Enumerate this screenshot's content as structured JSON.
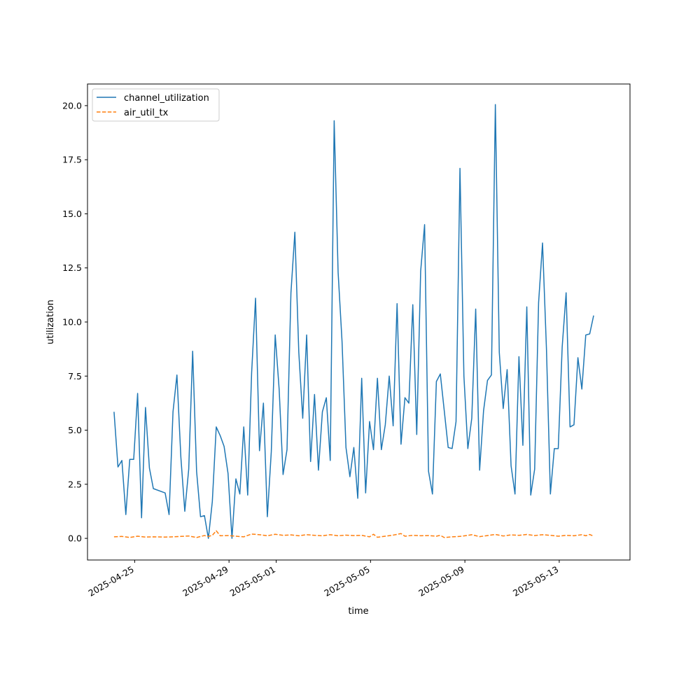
{
  "chart_data": {
    "type": "line",
    "title": "",
    "xlabel": "time",
    "ylabel": "utilization",
    "xlim": [
      "2025-04-23",
      "2025-05-16"
    ],
    "ylim": [
      -1.0,
      21.0
    ],
    "x_ticks": [
      "2025-04-25",
      "2025-04-29",
      "2025-05-01",
      "2025-05-05",
      "2025-05-09",
      "2025-05-13"
    ],
    "y_ticks": [
      "0.0",
      "2.5",
      "5.0",
      "7.5",
      "10.0",
      "12.5",
      "15.0",
      "17.5",
      "20.0"
    ],
    "grid": false,
    "legend": "top-left",
    "series": [
      {
        "name": "channel_utilization",
        "color": "#1f77b4",
        "style": "solid",
        "points": [
          [
            "2025-04-24 03:00",
            5.85
          ],
          [
            "2025-04-24 07:00",
            3.3
          ],
          [
            "2025-04-24 11:00",
            3.6
          ],
          [
            "2025-04-24 15:00",
            1.1
          ],
          [
            "2025-04-24 19:00",
            3.65
          ],
          [
            "2025-04-24 23:00",
            3.65
          ],
          [
            "2025-04-25 03:00",
            6.7
          ],
          [
            "2025-04-25 07:00",
            0.95
          ],
          [
            "2025-04-25 11:00",
            6.05
          ],
          [
            "2025-04-25 15:00",
            3.25
          ],
          [
            "2025-04-25 19:00",
            2.3
          ],
          [
            "2025-04-26 07:00",
            2.1
          ],
          [
            "2025-04-26 11:00",
            1.1
          ],
          [
            "2025-04-26 15:00",
            5.85
          ],
          [
            "2025-04-26 19:00",
            7.55
          ],
          [
            "2025-04-26 23:00",
            3.75
          ],
          [
            "2025-04-27 03:00",
            1.25
          ],
          [
            "2025-04-27 07:00",
            3.2
          ],
          [
            "2025-04-27 11:00",
            8.65
          ],
          [
            "2025-04-27 15:00",
            3.1
          ],
          [
            "2025-04-27 19:00",
            1.0
          ],
          [
            "2025-04-27 23:00",
            1.05
          ],
          [
            "2025-04-28 03:00",
            0.0
          ],
          [
            "2025-04-28 07:00",
            1.7
          ],
          [
            "2025-04-28 11:00",
            5.15
          ],
          [
            "2025-04-28 15:00",
            4.75
          ],
          [
            "2025-04-28 19:00",
            4.25
          ],
          [
            "2025-04-28 23:00",
            3.0
          ],
          [
            "2025-04-29 03:00",
            0.0
          ],
          [
            "2025-04-29 07:00",
            2.75
          ],
          [
            "2025-04-29 11:00",
            2.05
          ],
          [
            "2025-04-29 15:00",
            5.15
          ],
          [
            "2025-04-29 19:00",
            2.0
          ],
          [
            "2025-04-29 23:00",
            7.65
          ],
          [
            "2025-04-30 03:00",
            11.1
          ],
          [
            "2025-04-30 07:00",
            4.05
          ],
          [
            "2025-04-30 11:00",
            6.25
          ],
          [
            "2025-04-30 15:00",
            1.0
          ],
          [
            "2025-04-30 19:00",
            4.0
          ],
          [
            "2025-04-30 23:00",
            9.4
          ],
          [
            "2025-05-01 03:00",
            6.9
          ],
          [
            "2025-05-01 07:00",
            2.95
          ],
          [
            "2025-05-01 11:00",
            4.1
          ],
          [
            "2025-05-01 15:00",
            11.35
          ],
          [
            "2025-05-01 19:00",
            14.15
          ],
          [
            "2025-05-01 23:00",
            8.6
          ],
          [
            "2025-05-02 03:00",
            5.55
          ],
          [
            "2025-05-02 07:00",
            9.4
          ],
          [
            "2025-05-02 11:00",
            3.55
          ],
          [
            "2025-05-02 15:00",
            6.65
          ],
          [
            "2025-05-02 19:00",
            3.15
          ],
          [
            "2025-05-02 23:00",
            5.85
          ],
          [
            "2025-05-03 03:00",
            6.5
          ],
          [
            "2025-05-03 07:00",
            3.6
          ],
          [
            "2025-05-03 11:00",
            19.3
          ],
          [
            "2025-05-03 15:00",
            12.3
          ],
          [
            "2025-05-03 19:00",
            9.1
          ],
          [
            "2025-05-03 23:00",
            4.2
          ],
          [
            "2025-05-04 03:00",
            2.85
          ],
          [
            "2025-05-04 07:00",
            4.2
          ],
          [
            "2025-05-04 11:00",
            1.85
          ],
          [
            "2025-05-04 15:00",
            7.4
          ],
          [
            "2025-05-04 19:00",
            2.1
          ],
          [
            "2025-05-04 23:00",
            5.4
          ],
          [
            "2025-05-05 03:00",
            4.1
          ],
          [
            "2025-05-05 07:00",
            7.4
          ],
          [
            "2025-05-05 11:00",
            4.1
          ],
          [
            "2025-05-05 15:00",
            5.25
          ],
          [
            "2025-05-05 19:00",
            7.5
          ],
          [
            "2025-05-05 23:00",
            5.2
          ],
          [
            "2025-05-06 03:00",
            10.85
          ],
          [
            "2025-05-06 07:00",
            4.35
          ],
          [
            "2025-05-06 11:00",
            6.5
          ],
          [
            "2025-05-06 15:00",
            6.25
          ],
          [
            "2025-05-06 19:00",
            10.8
          ],
          [
            "2025-05-06 23:00",
            4.8
          ],
          [
            "2025-05-07 03:00",
            12.35
          ],
          [
            "2025-05-07 07:00",
            14.5
          ],
          [
            "2025-05-07 11:00",
            3.1
          ],
          [
            "2025-05-07 15:00",
            2.05
          ],
          [
            "2025-05-07 19:00",
            7.25
          ],
          [
            "2025-05-07 23:00",
            7.6
          ],
          [
            "2025-05-08 03:00",
            5.9
          ],
          [
            "2025-05-08 07:00",
            4.2
          ],
          [
            "2025-05-08 11:00",
            4.15
          ],
          [
            "2025-05-08 15:00",
            5.4
          ],
          [
            "2025-05-08 19:00",
            17.1
          ],
          [
            "2025-05-08 23:00",
            7.5
          ],
          [
            "2025-05-09 03:00",
            4.15
          ],
          [
            "2025-05-09 07:00",
            5.55
          ],
          [
            "2025-05-09 11:00",
            10.6
          ],
          [
            "2025-05-09 15:00",
            3.15
          ],
          [
            "2025-05-09 19:00",
            5.9
          ],
          [
            "2025-05-09 23:00",
            7.3
          ],
          [
            "2025-05-10 03:00",
            7.55
          ],
          [
            "2025-05-10 07:00",
            20.05
          ],
          [
            "2025-05-10 11:00",
            8.6
          ],
          [
            "2025-05-10 15:00",
            6.0
          ],
          [
            "2025-05-10 19:00",
            7.8
          ],
          [
            "2025-05-10 23:00",
            3.35
          ],
          [
            "2025-05-11 03:00",
            2.05
          ],
          [
            "2025-05-11 07:00",
            8.4
          ],
          [
            "2025-05-11 11:00",
            4.3
          ],
          [
            "2025-05-11 15:00",
            10.7
          ],
          [
            "2025-05-11 19:00",
            2.0
          ],
          [
            "2025-05-11 23:00",
            3.2
          ],
          [
            "2025-05-12 03:00",
            10.9
          ],
          [
            "2025-05-12 07:00",
            13.65
          ],
          [
            "2025-05-12 11:00",
            8.75
          ],
          [
            "2025-05-12 15:00",
            2.05
          ],
          [
            "2025-05-12 19:00",
            4.15
          ],
          [
            "2025-05-12 23:00",
            4.15
          ],
          [
            "2025-05-13 03:00",
            8.85
          ],
          [
            "2025-05-13 07:00",
            11.35
          ],
          [
            "2025-05-13 11:00",
            5.15
          ],
          [
            "2025-05-13 15:00",
            5.25
          ],
          [
            "2025-05-13 19:00",
            8.35
          ],
          [
            "2025-05-13 23:00",
            6.9
          ],
          [
            "2025-05-14 03:00",
            9.4
          ],
          [
            "2025-05-14 07:00",
            9.45
          ],
          [
            "2025-05-14 11:00",
            10.3
          ]
        ]
      },
      {
        "name": "air_util_tx",
        "color": "#ff7f0e",
        "style": "dashed",
        "points": [
          [
            "2025-04-24 03:00",
            0.07
          ],
          [
            "2025-04-24 11:00",
            0.09
          ],
          [
            "2025-04-24 19:00",
            0.04
          ],
          [
            "2025-04-25 03:00",
            0.1
          ],
          [
            "2025-04-25 11:00",
            0.06
          ],
          [
            "2025-04-25 19:00",
            0.07
          ],
          [
            "2025-04-26 07:00",
            0.06
          ],
          [
            "2025-04-26 15:00",
            0.07
          ],
          [
            "2025-04-26 23:00",
            0.09
          ],
          [
            "2025-04-27 07:00",
            0.11
          ],
          [
            "2025-04-27 15:00",
            0.04
          ],
          [
            "2025-04-27 23:00",
            0.13
          ],
          [
            "2025-04-28 03:00",
            0.09
          ],
          [
            "2025-04-28 07:00",
            0.14
          ],
          [
            "2025-04-28 11:00",
            0.35
          ],
          [
            "2025-04-28 15:00",
            0.12
          ],
          [
            "2025-04-28 23:00",
            0.13
          ],
          [
            "2025-04-29 07:00",
            0.1
          ],
          [
            "2025-04-29 15:00",
            0.07
          ],
          [
            "2025-04-29 23:00",
            0.2
          ],
          [
            "2025-04-30 07:00",
            0.17
          ],
          [
            "2025-04-30 15:00",
            0.12
          ],
          [
            "2025-04-30 23:00",
            0.19
          ],
          [
            "2025-05-01 07:00",
            0.14
          ],
          [
            "2025-05-01 15:00",
            0.16
          ],
          [
            "2025-05-01 23:00",
            0.12
          ],
          [
            "2025-05-02 07:00",
            0.17
          ],
          [
            "2025-05-02 15:00",
            0.14
          ],
          [
            "2025-05-02 23:00",
            0.12
          ],
          [
            "2025-05-03 07:00",
            0.17
          ],
          [
            "2025-05-03 15:00",
            0.12
          ],
          [
            "2025-05-03 23:00",
            0.15
          ],
          [
            "2025-05-04 07:00",
            0.13
          ],
          [
            "2025-05-04 15:00",
            0.14
          ],
          [
            "2025-05-04 23:00",
            0.07
          ],
          [
            "2025-05-05 03:00",
            0.19
          ],
          [
            "2025-05-05 07:00",
            0.05
          ],
          [
            "2025-05-05 15:00",
            0.1
          ],
          [
            "2025-05-05 23:00",
            0.15
          ],
          [
            "2025-05-06 07:00",
            0.22
          ],
          [
            "2025-05-06 11:00",
            0.1
          ],
          [
            "2025-05-06 19:00",
            0.14
          ],
          [
            "2025-05-07 03:00",
            0.12
          ],
          [
            "2025-05-07 11:00",
            0.13
          ],
          [
            "2025-05-07 19:00",
            0.1
          ],
          [
            "2025-05-07 23:00",
            0.14
          ],
          [
            "2025-05-08 03:00",
            0.04
          ],
          [
            "2025-05-08 11:00",
            0.07
          ],
          [
            "2025-05-08 19:00",
            0.09
          ],
          [
            "2025-05-09 03:00",
            0.14
          ],
          [
            "2025-05-09 07:00",
            0.17
          ],
          [
            "2025-05-09 15:00",
            0.08
          ],
          [
            "2025-05-09 23:00",
            0.13
          ],
          [
            "2025-05-10 07:00",
            0.18
          ],
          [
            "2025-05-10 15:00",
            0.11
          ],
          [
            "2025-05-10 23:00",
            0.16
          ],
          [
            "2025-05-11 07:00",
            0.14
          ],
          [
            "2025-05-11 15:00",
            0.18
          ],
          [
            "2025-05-11 23:00",
            0.13
          ],
          [
            "2025-05-12 07:00",
            0.17
          ],
          [
            "2025-05-12 15:00",
            0.14
          ],
          [
            "2025-05-12 23:00",
            0.1
          ],
          [
            "2025-05-13 07:00",
            0.14
          ],
          [
            "2025-05-13 15:00",
            0.12
          ],
          [
            "2025-05-13 23:00",
            0.17
          ],
          [
            "2025-05-14 03:00",
            0.12
          ],
          [
            "2025-05-14 07:00",
            0.18
          ],
          [
            "2025-05-14 11:00",
            0.1
          ]
        ]
      }
    ]
  }
}
